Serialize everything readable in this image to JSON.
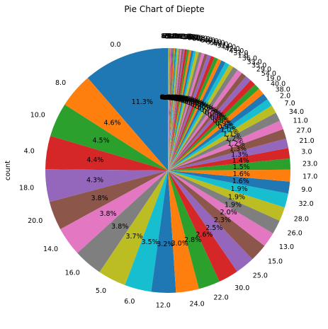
{
  "chart_data": {
    "type": "pie",
    "title": "Pie Chart of Diepte",
    "ylabel": "count",
    "start_angle": "top (90°)",
    "direction": "counterclockwise",
    "pct_format": "%.1f%%",
    "pct_labels_shown_from": 2.0,
    "slices": [
      {
        "label": "0.0",
        "value": 11.6
      },
      {
        "label": "8.0",
        "value": 4.7
      },
      {
        "label": "10.0",
        "value": 4.6
      },
      {
        "label": "4.0",
        "value": 4.5
      },
      {
        "label": "18.0",
        "value": 4.4
      },
      {
        "label": "20.0",
        "value": 3.9
      },
      {
        "label": "14.0",
        "value": 3.9
      },
      {
        "label": "16.0",
        "value": 3.9
      },
      {
        "label": "5.0",
        "value": 3.8
      },
      {
        "label": "6.0",
        "value": 3.6
      },
      {
        "label": "12.0",
        "value": 3.3
      },
      {
        "label": "24.0",
        "value": 3.1
      },
      {
        "label": "22.0",
        "value": 2.9
      },
      {
        "label": "30.0",
        "value": 2.7
      },
      {
        "label": "25.0",
        "value": 2.6
      },
      {
        "label": "15.0",
        "value": 2.4
      },
      {
        "label": "13.0",
        "value": 2.0
      },
      {
        "label": "26.0",
        "value": 1.9
      },
      {
        "label": "28.0",
        "value": 1.9
      },
      {
        "label": "32.0",
        "value": 1.9
      },
      {
        "label": "9.0",
        "value": 1.6
      },
      {
        "label": "17.0",
        "value": 1.6
      },
      {
        "label": "23.0",
        "value": 1.5
      },
      {
        "label": "3.0",
        "value": 1.4
      },
      {
        "label": "21.0",
        "value": 1.3
      },
      {
        "label": "27.0",
        "value": 1.3
      },
      {
        "label": "11.0",
        "value": 1.2
      },
      {
        "label": "34.0",
        "value": 1.2
      },
      {
        "label": "7.0",
        "value": 1.1
      },
      {
        "label": "2.0",
        "value": 1.0
      },
      {
        "label": "38.0",
        "value": 0.9
      },
      {
        "label": "40.0",
        "value": 0.9
      },
      {
        "label": "19.0",
        "value": 0.8
      },
      {
        "label": "54.0",
        "value": 0.8
      },
      {
        "label": "29.0",
        "value": 0.8
      },
      {
        "label": "35.0",
        "value": 0.7
      },
      {
        "label": "33.0",
        "value": 0.7
      },
      {
        "label": "36.0",
        "value": 0.7
      },
      {
        "label": "1.0",
        "value": 0.6
      },
      {
        "label": "31.0",
        "value": 0.6
      },
      {
        "label": "45.0",
        "value": 0.6
      },
      {
        "label": "42.0",
        "value": 0.5
      },
      {
        "label": "44.0",
        "value": 0.5
      },
      {
        "label": "37.0",
        "value": 0.5
      },
      {
        "label": "48.0",
        "value": 0.5
      },
      {
        "label": "50.0",
        "value": 0.4
      },
      {
        "label": "39.0",
        "value": 0.4
      },
      {
        "label": "46.0",
        "value": 0.4
      },
      {
        "label": "60.0",
        "value": 0.4
      },
      {
        "label": "41.0",
        "value": 0.3
      },
      {
        "label": "43.0",
        "value": 0.3
      },
      {
        "label": "52.0",
        "value": 0.3
      },
      {
        "label": "47.0",
        "value": 0.3
      },
      {
        "label": "55.0",
        "value": 0.3
      },
      {
        "label": "49.0",
        "value": 0.2
      },
      {
        "label": "56.0",
        "value": 0.2
      },
      {
        "label": "58.0",
        "value": 0.2
      },
      {
        "label": "51.0",
        "value": 0.2
      },
      {
        "label": "65.0",
        "value": 0.2
      },
      {
        "label": "53.0",
        "value": 0.15
      },
      {
        "label": "70.0",
        "value": 0.15
      },
      {
        "label": "57.0",
        "value": 0.15
      },
      {
        "label": "62.0",
        "value": 0.1
      },
      {
        "label": "59.0",
        "value": 0.1
      },
      {
        "label": "64.0",
        "value": 0.1
      },
      {
        "label": "61.0",
        "value": 0.1
      },
      {
        "label": "75.0",
        "value": 0.1
      },
      {
        "label": "68.0",
        "value": 0.1
      },
      {
        "label": "63.0",
        "value": 0.1
      },
      {
        "label": "80.0",
        "value": 0.1
      }
    ],
    "colors": [
      "#1f77b4",
      "#ff7f0e",
      "#2ca02c",
      "#d62728",
      "#9467bd",
      "#8c564b",
      "#e377c2",
      "#7f7f7f",
      "#bcbd22",
      "#17becf"
    ]
  }
}
